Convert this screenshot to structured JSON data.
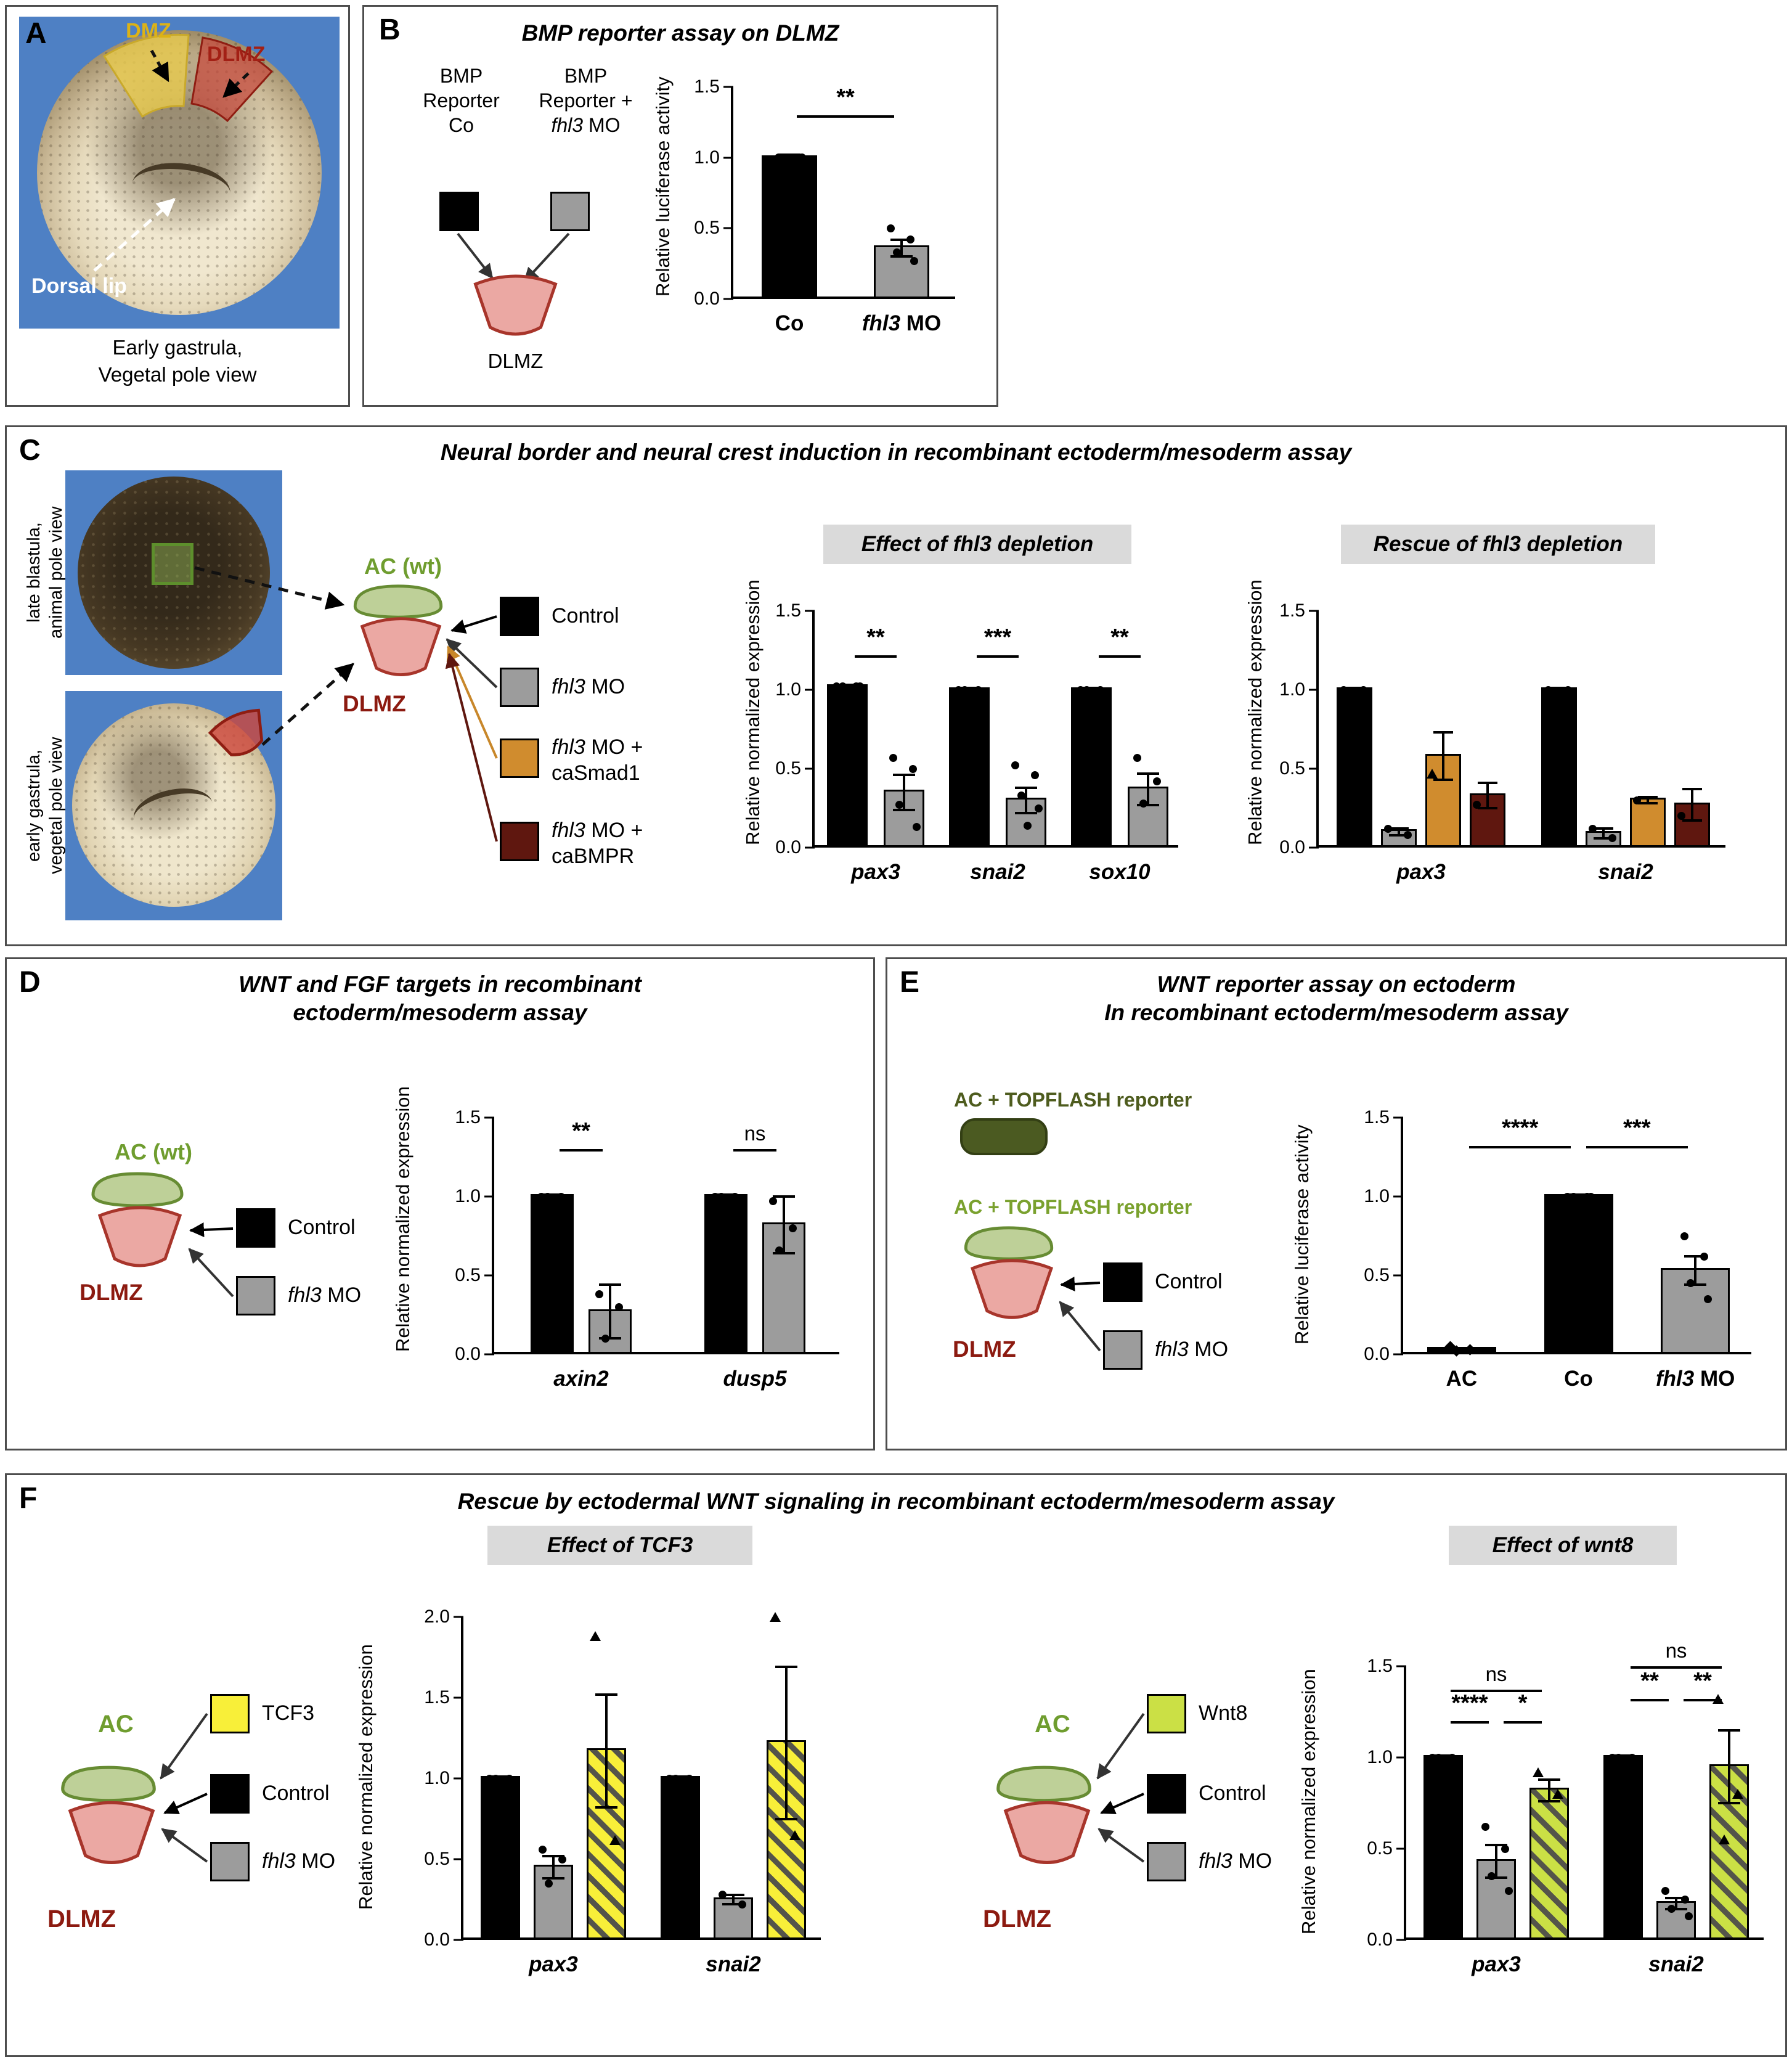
{
  "panelA": {
    "letter": "A",
    "dmz_label": "DMZ",
    "dlmz_label": "DLMZ",
    "dorsal_lip_label": "Dorsal lip",
    "caption_line1": "Early gastrula,",
    "caption_line2": "Vegetal pole view"
  },
  "panelB": {
    "letter": "B",
    "title": "BMP reporter assay on DLMZ",
    "cond1_line1": [
      {
        "t": "BMP"
      }
    ],
    "cond1_line2": [
      {
        "t": "Reporter"
      }
    ],
    "cond1_line3": [
      {
        "t": "Co"
      }
    ],
    "cond2_line1": [
      {
        "t": "BMP"
      }
    ],
    "cond2_line2": [
      {
        "t": "Reporter +"
      }
    ],
    "cond2_line3": [
      {
        "t": "fhl3",
        "i": true
      },
      {
        "t": " MO"
      }
    ],
    "dlmz_label": "DLMZ"
  },
  "panelC": {
    "letter": "C",
    "title": "Neural border and neural crest induction in recombinant ectoderm/mesoderm assay",
    "photo1_label_line1": "late blastula,",
    "photo1_label_line2": "animal pole view",
    "photo2_label_line1": "early gastrula,",
    "photo2_label_line2": "vegetal pole view",
    "ac_label": "AC (wt)",
    "dlmz_label": "DLMZ",
    "legend1": [
      {
        "t": "Control"
      }
    ],
    "legend2": [
      {
        "t": "fhl3",
        "i": true
      },
      {
        "t": " MO"
      }
    ],
    "legend3_line1": [
      {
        "t": "fhl3",
        "i": true
      },
      {
        "t": " MO +"
      }
    ],
    "legend3_line2": [
      {
        "t": "caSmad1"
      }
    ],
    "legend4_line1": [
      {
        "t": "fhl3",
        "i": true
      },
      {
        "t": " MO +"
      }
    ],
    "legend4_line2": [
      {
        "t": "caBMPR"
      }
    ]
  },
  "panelD": {
    "letter": "D",
    "title_line1": "WNT and FGF targets in recombinant",
    "title_line2": "ectoderm/mesoderm assay",
    "ac_label": "AC (wt)",
    "dlmz_label": "DLMZ",
    "legend1": [
      {
        "t": "Control"
      }
    ],
    "legend2": [
      {
        "t": "fhl3",
        "i": true
      },
      {
        "t": " MO"
      }
    ]
  },
  "panelE": {
    "letter": "E",
    "title_line1": "WNT reporter assay on ectoderm",
    "title_line2": "In recombinant ectoderm/mesoderm assay",
    "reporter1_label": "AC + TOPFLASH reporter",
    "reporter2_label": "AC + TOPFLASH reporter",
    "dlmz_label": "DLMZ",
    "legend1": [
      {
        "t": "Control"
      }
    ],
    "legend2": [
      {
        "t": "fhl3",
        "i": true
      },
      {
        "t": " MO"
      }
    ]
  },
  "panelF": {
    "letter": "F",
    "title": "Rescue by ectodermal WNT signaling in recombinant ectoderm/mesoderm assay",
    "left_ac_label": "AC",
    "left_dlmz_label": "DLMZ",
    "left_legend1": [
      {
        "t": "TCF3"
      }
    ],
    "left_legend2": [
      {
        "t": "Control"
      }
    ],
    "left_legend3": [
      {
        "t": "fhl3",
        "i": true
      },
      {
        "t": " MO"
      }
    ],
    "right_ac_label": "AC",
    "right_dlmz_label": "DLMZ",
    "right_legend1": [
      {
        "t": "Wnt8"
      }
    ],
    "right_legend2": [
      {
        "t": "Control"
      }
    ],
    "right_legend3": [
      {
        "t": "fhl3",
        "i": true
      },
      {
        "t": " MO"
      }
    ]
  },
  "chart_data": {
    "b": {
      "type": "bar",
      "ylabel": "Relative luciferase activity",
      "ymax": 1.5,
      "yticks": [
        0,
        0.5,
        1,
        1.5
      ],
      "groups": [
        {
          "label": [
            {
              "t": "Co"
            }
          ],
          "bars": [
            {
              "v": 1.0,
              "style": "black",
              "err": 0.02,
              "marker": "dot",
              "points": [
                1.0,
                1.0,
                1.0,
                1.0
              ]
            }
          ]
        },
        {
          "label": [
            {
              "t": "fhl3",
              "i": true
            },
            {
              "t": " MO"
            }
          ],
          "bars": [
            {
              "v": 0.36,
              "style": "gray",
              "err": 0.06,
              "marker": "dot",
              "points": [
                0.5,
                0.42,
                0.33,
                0.27
              ]
            }
          ]
        }
      ],
      "sig": [
        {
          "text": "**",
          "a": [
            0,
            0
          ],
          "b": [
            1,
            0
          ],
          "y": 1.3
        }
      ]
    },
    "c1": {
      "type": "bar",
      "title": "Effect of fhl3 depletion",
      "ylabel": "Relative normalized expression",
      "ymax": 1.5,
      "yticks": [
        0,
        0.5,
        1,
        1.5
      ],
      "groups": [
        {
          "label": [
            {
              "t": "pax3",
              "i": true
            }
          ],
          "bars": [
            {
              "v": 1.02,
              "style": "black",
              "err": 0.01,
              "marker": "dot",
              "points": [
                1.02,
                1.02,
                1.02,
                1.02
              ]
            },
            {
              "v": 0.35,
              "style": "gray",
              "err": 0.11,
              "marker": "dot",
              "points": [
                0.57,
                0.5,
                0.27,
                0.13
              ]
            }
          ]
        },
        {
          "label": [
            {
              "t": "snai2",
              "i": true
            }
          ],
          "bars": [
            {
              "v": 1.0,
              "style": "black",
              "err": 0.01,
              "marker": "dot",
              "points": [
                1.0,
                1.0,
                1.0
              ]
            },
            {
              "v": 0.3,
              "style": "gray",
              "err": 0.08,
              "marker": "dot",
              "points": [
                0.52,
                0.46,
                0.33,
                0.25,
                0.14
              ]
            }
          ]
        },
        {
          "label": [
            {
              "t": "sox10",
              "i": true
            }
          ],
          "bars": [
            {
              "v": 1.0,
              "style": "black",
              "err": 0.01,
              "marker": "dot",
              "points": [
                1.0,
                1.0,
                1.0
              ]
            },
            {
              "v": 0.37,
              "style": "gray",
              "err": 0.1,
              "marker": "dot",
              "points": [
                0.57,
                0.42,
                0.28
              ]
            }
          ]
        }
      ],
      "sig": [
        {
          "text": "**",
          "a": [
            0,
            0
          ],
          "b": [
            0,
            1
          ],
          "y": 1.22
        },
        {
          "text": "***",
          "a": [
            1,
            0
          ],
          "b": [
            1,
            1
          ],
          "y": 1.22
        },
        {
          "text": "**",
          "a": [
            2,
            0
          ],
          "b": [
            2,
            1
          ],
          "y": 1.22
        }
      ]
    },
    "c2": {
      "type": "bar",
      "title": "Rescue of fhl3 depletion",
      "ylabel": "Relative normalized expression",
      "ymax": 1.5,
      "yticks": [
        0,
        0.5,
        1,
        1.5
      ],
      "groups": [
        {
          "label": [
            {
              "t": "pax3",
              "i": true
            }
          ],
          "bars": [
            {
              "v": 1.0,
              "style": "black",
              "err": 0.01,
              "marker": "dot",
              "points": [
                1.0,
                1.0
              ]
            },
            {
              "v": 0.1,
              "style": "gray",
              "err": 0.02,
              "marker": "dot",
              "points": [
                0.12,
                0.08
              ]
            },
            {
              "v": 0.58,
              "style": "orange",
              "err": 0.15,
              "marker": "triangle",
              "points": [
                0.47
              ]
            },
            {
              "v": 0.33,
              "style": "maroon",
              "err": 0.08,
              "marker": "dot",
              "points": [
                0.27
              ]
            }
          ]
        },
        {
          "label": [
            {
              "t": "snai2",
              "i": true
            }
          ],
          "bars": [
            {
              "v": 1.0,
              "style": "black",
              "err": 0.01,
              "marker": "dot",
              "points": [
                1.0,
                1.0
              ]
            },
            {
              "v": 0.09,
              "style": "gray",
              "err": 0.03,
              "marker": "dot",
              "points": [
                0.12,
                0.06
              ]
            },
            {
              "v": 0.3,
              "style": "orange",
              "err": 0.02,
              "marker": "dot",
              "points": [
                0.3
              ]
            },
            {
              "v": 0.27,
              "style": "maroon",
              "err": 0.1,
              "marker": "dot",
              "points": [
                0.2
              ]
            }
          ]
        }
      ]
    },
    "d": {
      "type": "bar",
      "ylabel": "Relative normalized expression",
      "ymax": 1.5,
      "yticks": [
        0,
        0.5,
        1,
        1.5
      ],
      "groups": [
        {
          "label": [
            {
              "t": "axin2",
              "i": true
            }
          ],
          "bars": [
            {
              "v": 1.0,
              "style": "black",
              "err": 0.01,
              "marker": "dot",
              "points": [
                1.0,
                1.0,
                1.0
              ]
            },
            {
              "v": 0.27,
              "style": "gray",
              "err": 0.17,
              "marker": "dot",
              "points": [
                0.38,
                0.3,
                0.1
              ]
            }
          ]
        },
        {
          "label": [
            {
              "t": "dusp5",
              "i": true
            }
          ],
          "bars": [
            {
              "v": 1.0,
              "style": "black",
              "err": 0.01,
              "marker": "dot",
              "points": [
                1.0,
                1.0,
                1.0
              ]
            },
            {
              "v": 0.82,
              "style": "gray",
              "err": 0.18,
              "marker": "dot",
              "points": [
                0.97,
                0.8,
                0.66
              ]
            }
          ]
        }
      ],
      "sig": [
        {
          "text": "**",
          "a": [
            0,
            0
          ],
          "b": [
            0,
            1
          ],
          "y": 1.3
        },
        {
          "text": "ns",
          "a": [
            1,
            0
          ],
          "b": [
            1,
            1
          ],
          "y": 1.3
        }
      ]
    },
    "e": {
      "type": "bar",
      "ylabel": "Relative luciferase activity",
      "ymax": 1.5,
      "yticks": [
        0,
        0.5,
        1,
        1.5
      ],
      "groups": [
        {
          "label": [
            {
              "t": "AC"
            }
          ],
          "bars": [
            {
              "v": 0.03,
              "style": "black",
              "err": 0.01,
              "marker": "diamond",
              "points": [
                0.05,
                0.03,
                0.02
              ]
            }
          ]
        },
        {
          "label": [
            {
              "t": "Co"
            }
          ],
          "bars": [
            {
              "v": 1.0,
              "style": "black",
              "err": 0.01,
              "marker": "dot",
              "points": [
                1.0,
                1.0,
                1.0,
                1.0
              ]
            }
          ]
        },
        {
          "label": [
            {
              "t": "fhl3",
              "i": true
            },
            {
              "t": " MO"
            }
          ],
          "bars": [
            {
              "v": 0.53,
              "style": "gray",
              "err": 0.09,
              "marker": "dot",
              "points": [
                0.75,
                0.62,
                0.45,
                0.35
              ]
            }
          ]
        }
      ],
      "sig": [
        {
          "text": "****",
          "a": [
            0,
            0
          ],
          "b": [
            1,
            0
          ],
          "y": 1.32
        },
        {
          "text": "***",
          "a": [
            1,
            0
          ],
          "b": [
            2,
            0
          ],
          "y": 1.32
        }
      ]
    },
    "f1": {
      "type": "bar",
      "title": "Effect of TCF3",
      "ylabel": "Relative normalized expression",
      "ymax": 2.0,
      "yticks": [
        0,
        0.5,
        1,
        1.5,
        2
      ],
      "groups": [
        {
          "label": [
            {
              "t": "pax3",
              "i": true
            }
          ],
          "bars": [
            {
              "v": 1.0,
              "style": "black",
              "err": 0.01,
              "marker": "dot",
              "points": [
                1.0,
                1.0,
                1.0
              ]
            },
            {
              "v": 0.45,
              "style": "gray",
              "err": 0.07,
              "marker": "dot",
              "points": [
                0.56,
                0.5,
                0.35
              ]
            },
            {
              "v": 1.17,
              "style": "yellowHatch",
              "err": 0.35,
              "marker": "triangle",
              "points": [
                1.88,
                0.62
              ]
            }
          ]
        },
        {
          "label": [
            {
              "t": "snai2",
              "i": true
            }
          ],
          "bars": [
            {
              "v": 1.0,
              "style": "black",
              "err": 0.01,
              "marker": "dot",
              "points": [
                1.0,
                1.0,
                1.0
              ]
            },
            {
              "v": 0.25,
              "style": "gray",
              "err": 0.03,
              "marker": "dot",
              "points": [
                0.28,
                0.22
              ]
            },
            {
              "v": 1.22,
              "style": "yellowHatch",
              "err": 0.47,
              "marker": "triangle",
              "points": [
                2.0,
                0.65
              ]
            }
          ]
        }
      ]
    },
    "f2": {
      "type": "bar",
      "title": "Effect of wnt8",
      "ylabel": "Relative normalized expression",
      "ymax": 1.5,
      "yticks": [
        0,
        0.5,
        1,
        1.5
      ],
      "groups": [
        {
          "label": [
            {
              "t": "pax3",
              "i": true
            }
          ],
          "bars": [
            {
              "v": 1.0,
              "style": "black",
              "err": 0.01,
              "marker": "dot",
              "points": [
                1.0,
                1.0,
                1.0
              ]
            },
            {
              "v": 0.43,
              "style": "gray",
              "err": 0.09,
              "marker": "dot",
              "points": [
                0.62,
                0.5,
                0.35,
                0.27
              ]
            },
            {
              "v": 0.82,
              "style": "greenHatch",
              "err": 0.06,
              "marker": "triangle",
              "points": [
                0.92,
                0.8
              ]
            }
          ]
        },
        {
          "label": [
            {
              "t": "snai2",
              "i": true
            }
          ],
          "bars": [
            {
              "v": 1.0,
              "style": "black",
              "err": 0.01,
              "marker": "dot",
              "points": [
                1.0,
                1.0,
                1.0
              ]
            },
            {
              "v": 0.2,
              "style": "gray",
              "err": 0.03,
              "marker": "dot",
              "points": [
                0.27,
                0.22,
                0.17,
                0.13
              ]
            },
            {
              "v": 0.95,
              "style": "greenHatch",
              "err": 0.2,
              "marker": "triangle",
              "points": [
                1.32,
                0.8,
                0.55
              ]
            }
          ]
        }
      ],
      "sig": [
        {
          "text": "****",
          "a": [
            0,
            0
          ],
          "b": [
            0,
            1
          ],
          "y": 1.2
        },
        {
          "text": "*",
          "a": [
            0,
            1
          ],
          "b": [
            0,
            2
          ],
          "y": 1.2
        },
        {
          "text": "ns",
          "a": [
            0,
            0
          ],
          "b": [
            0,
            2
          ],
          "y": 1.37
        },
        {
          "text": "**",
          "a": [
            1,
            0
          ],
          "b": [
            1,
            1
          ],
          "y": 1.32
        },
        {
          "text": "**",
          "a": [
            1,
            1
          ],
          "b": [
            1,
            2
          ],
          "y": 1.32
        },
        {
          "text": "ns",
          "a": [
            1,
            0
          ],
          "b": [
            1,
            2
          ],
          "y": 1.5
        }
      ]
    }
  }
}
